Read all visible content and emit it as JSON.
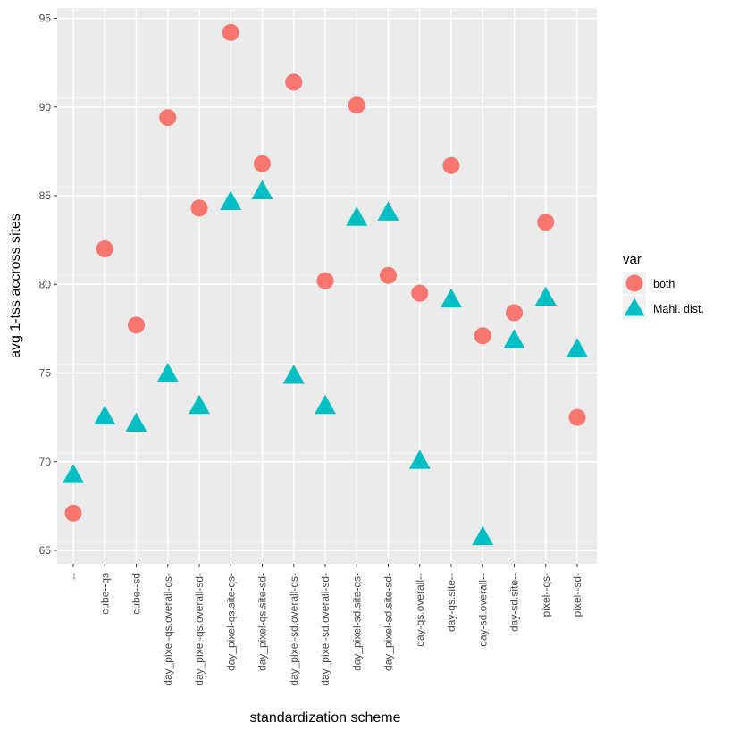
{
  "chart_data": {
    "type": "scatter",
    "title": "",
    "xlabel": "standardization scheme",
    "ylabel": "avg 1-tss accross sites",
    "ylim": [
      64,
      96
    ],
    "yticks": [
      65,
      70,
      75,
      80,
      85,
      90,
      95
    ],
    "grid": true,
    "legend_position": "right",
    "legend_title": "var",
    "categories": [
      "--",
      "cube--qs",
      "cube--sd",
      "day_pixel-qs.overall-qs-",
      "day_pixel-qs.overall-sd-",
      "day_pixel-qs.site-qs-",
      "day_pixel-qs.site-sd-",
      "day_pixel-sd.overall-qs-",
      "day_pixel-sd.overall-sd-",
      "day_pixel-sd.site-qs-",
      "day_pixel-sd.site-sd-",
      "day-qs.overall--",
      "day-qs.site--",
      "day-sd.overall--",
      "day-sd.site--",
      "pixel--qs-",
      "pixel--sd-"
    ],
    "series": [
      {
        "name": "both",
        "shape": "circle",
        "color": "#F8766D",
        "values": [
          67.1,
          82.0,
          77.7,
          89.4,
          84.3,
          94.2,
          86.8,
          91.4,
          80.2,
          90.1,
          80.5,
          79.5,
          86.7,
          77.1,
          78.4,
          83.5,
          72.5
        ]
      },
      {
        "name": "Mahl. dist.",
        "shape": "triangle",
        "color": "#00BFC4",
        "values": [
          69.2,
          72.5,
          72.1,
          74.9,
          73.1,
          84.6,
          85.2,
          74.8,
          73.1,
          83.7,
          84.0,
          70.0,
          79.1,
          65.7,
          76.8,
          79.2,
          76.3
        ]
      }
    ]
  }
}
